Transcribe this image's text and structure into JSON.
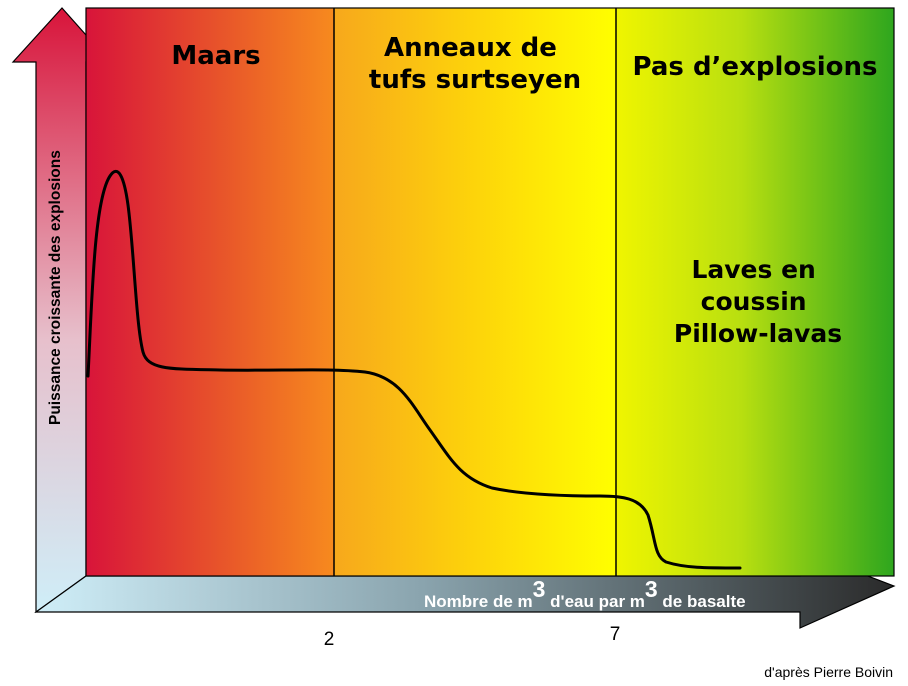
{
  "zones": [
    {
      "label_lines": [
        "Maars"
      ]
    },
    {
      "label_lines": [
        "Anneaux de",
        "tufs surtseyen"
      ]
    },
    {
      "label_lines": [
        "Pas d’explosions"
      ]
    }
  ],
  "pillow_label_lines": [
    "Laves en",
    "coussin",
    "Pillow-lavas"
  ],
  "y_axis_label": "Puissance croissante des explosions",
  "x_axis_label": {
    "part1": "Nombre de m",
    "sup1": "3",
    "part2": " d'eau par m",
    "sup2": "3",
    "part3": " de basalte"
  },
  "x_ticks": [
    "2",
    "7"
  ],
  "credit": "d'après Pierre Boivin",
  "colors": {
    "red": "#d8143a",
    "orange": "#f2a020",
    "yellow": "#ffff00",
    "green": "#2ea61e",
    "axis_light": "#cfeef8",
    "axis_dark": "#2a2a2a"
  }
}
